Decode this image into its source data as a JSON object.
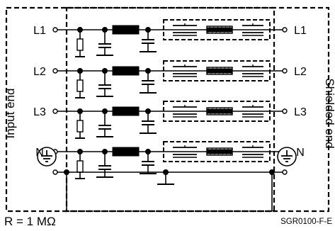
{
  "diagram": {
    "left_labels": [
      "L1",
      "L2",
      "L3",
      "N"
    ],
    "right_labels": [
      "L1",
      "L2",
      "L3",
      "N"
    ],
    "left_side_label": "Input end",
    "right_side_label": "Shielded end",
    "resistor_note": "R = 1 MΩ",
    "drawing_code": "SGR0100-F-E",
    "icons": [
      "ground-icon",
      "ground-icon",
      "ground-icon"
    ],
    "colors": {
      "ink": "#000000",
      "background": "#ffffff"
    }
  }
}
